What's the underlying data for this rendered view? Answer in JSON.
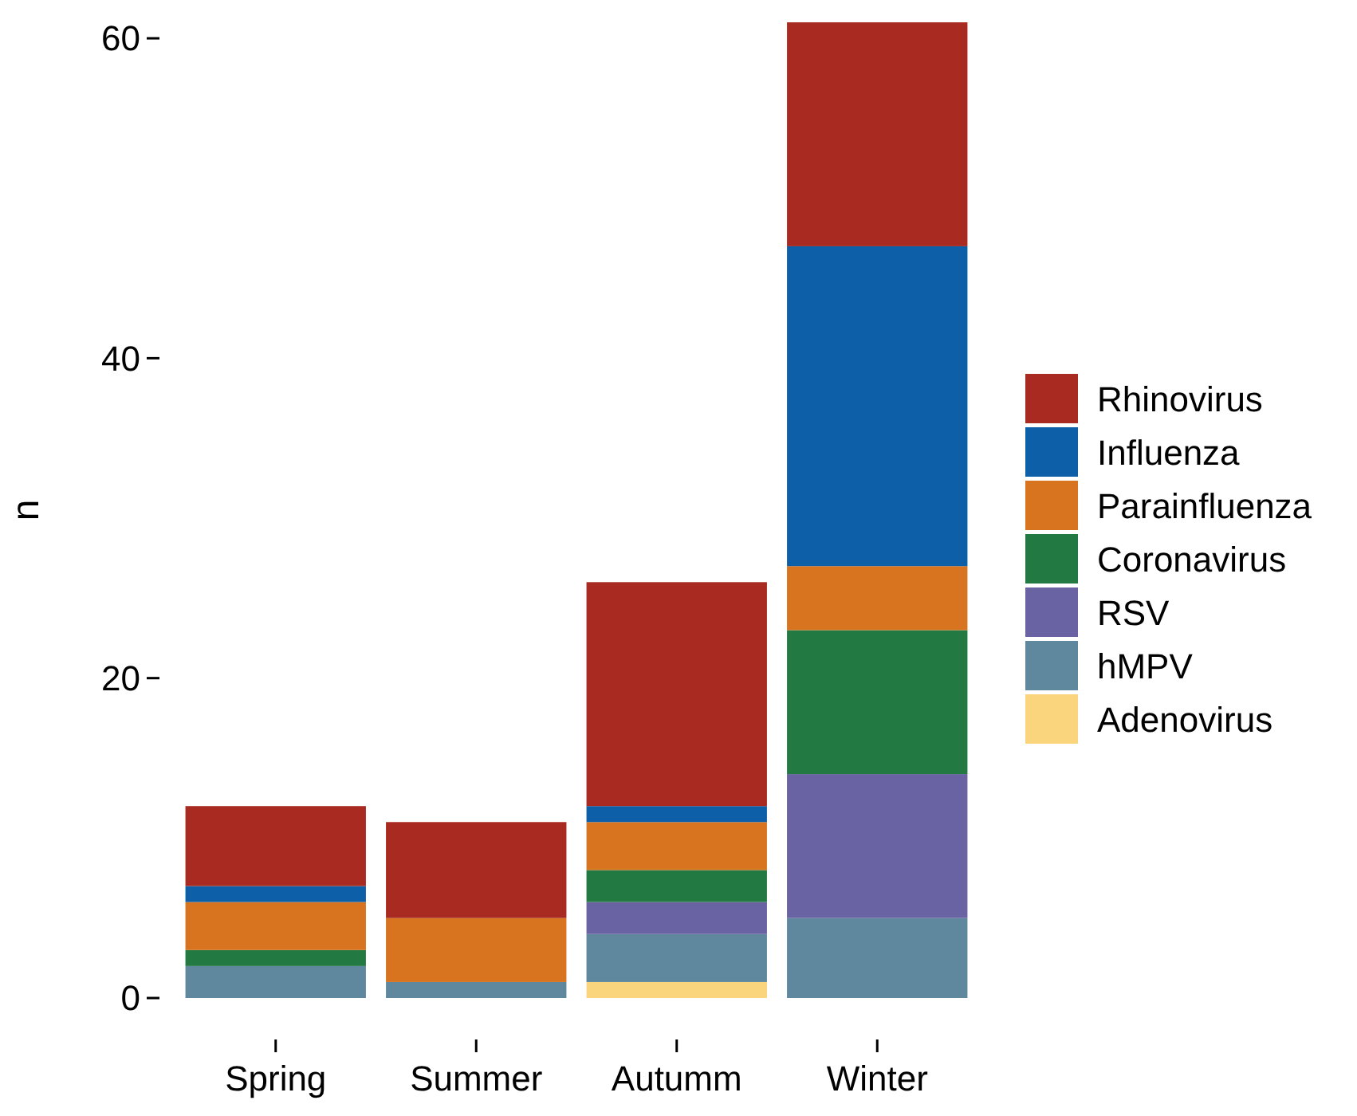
{
  "chart_data": {
    "type": "bar",
    "ylabel": "n",
    "categories": [
      "Spring",
      "Summer",
      "Autumm",
      "Winter"
    ],
    "stacked": true,
    "ylim": [
      0,
      61
    ],
    "yticks": [
      0,
      20,
      40,
      60
    ],
    "grid": false,
    "legend": "right",
    "series": [
      {
        "name": "Adenovirus",
        "color": "#fbd57e",
        "values": [
          0,
          0,
          1,
          0
        ]
      },
      {
        "name": "hMPV",
        "color": "#5f889f",
        "values": [
          2,
          1,
          3,
          5
        ]
      },
      {
        "name": "RSV",
        "color": "#6962a3",
        "values": [
          0,
          0,
          2,
          9
        ]
      },
      {
        "name": "Coronavirus",
        "color": "#227a42",
        "values": [
          1,
          0,
          2,
          9
        ]
      },
      {
        "name": "Parainfluenza",
        "color": "#d8731f",
        "values": [
          3,
          4,
          3,
          4
        ]
      },
      {
        "name": "Influenza",
        "color": "#0d5fa7",
        "values": [
          1,
          0,
          1,
          20
        ]
      },
      {
        "name": "Rhinovirus",
        "color": "#a82a21",
        "values": [
          5,
          6,
          14,
          14
        ]
      }
    ]
  }
}
